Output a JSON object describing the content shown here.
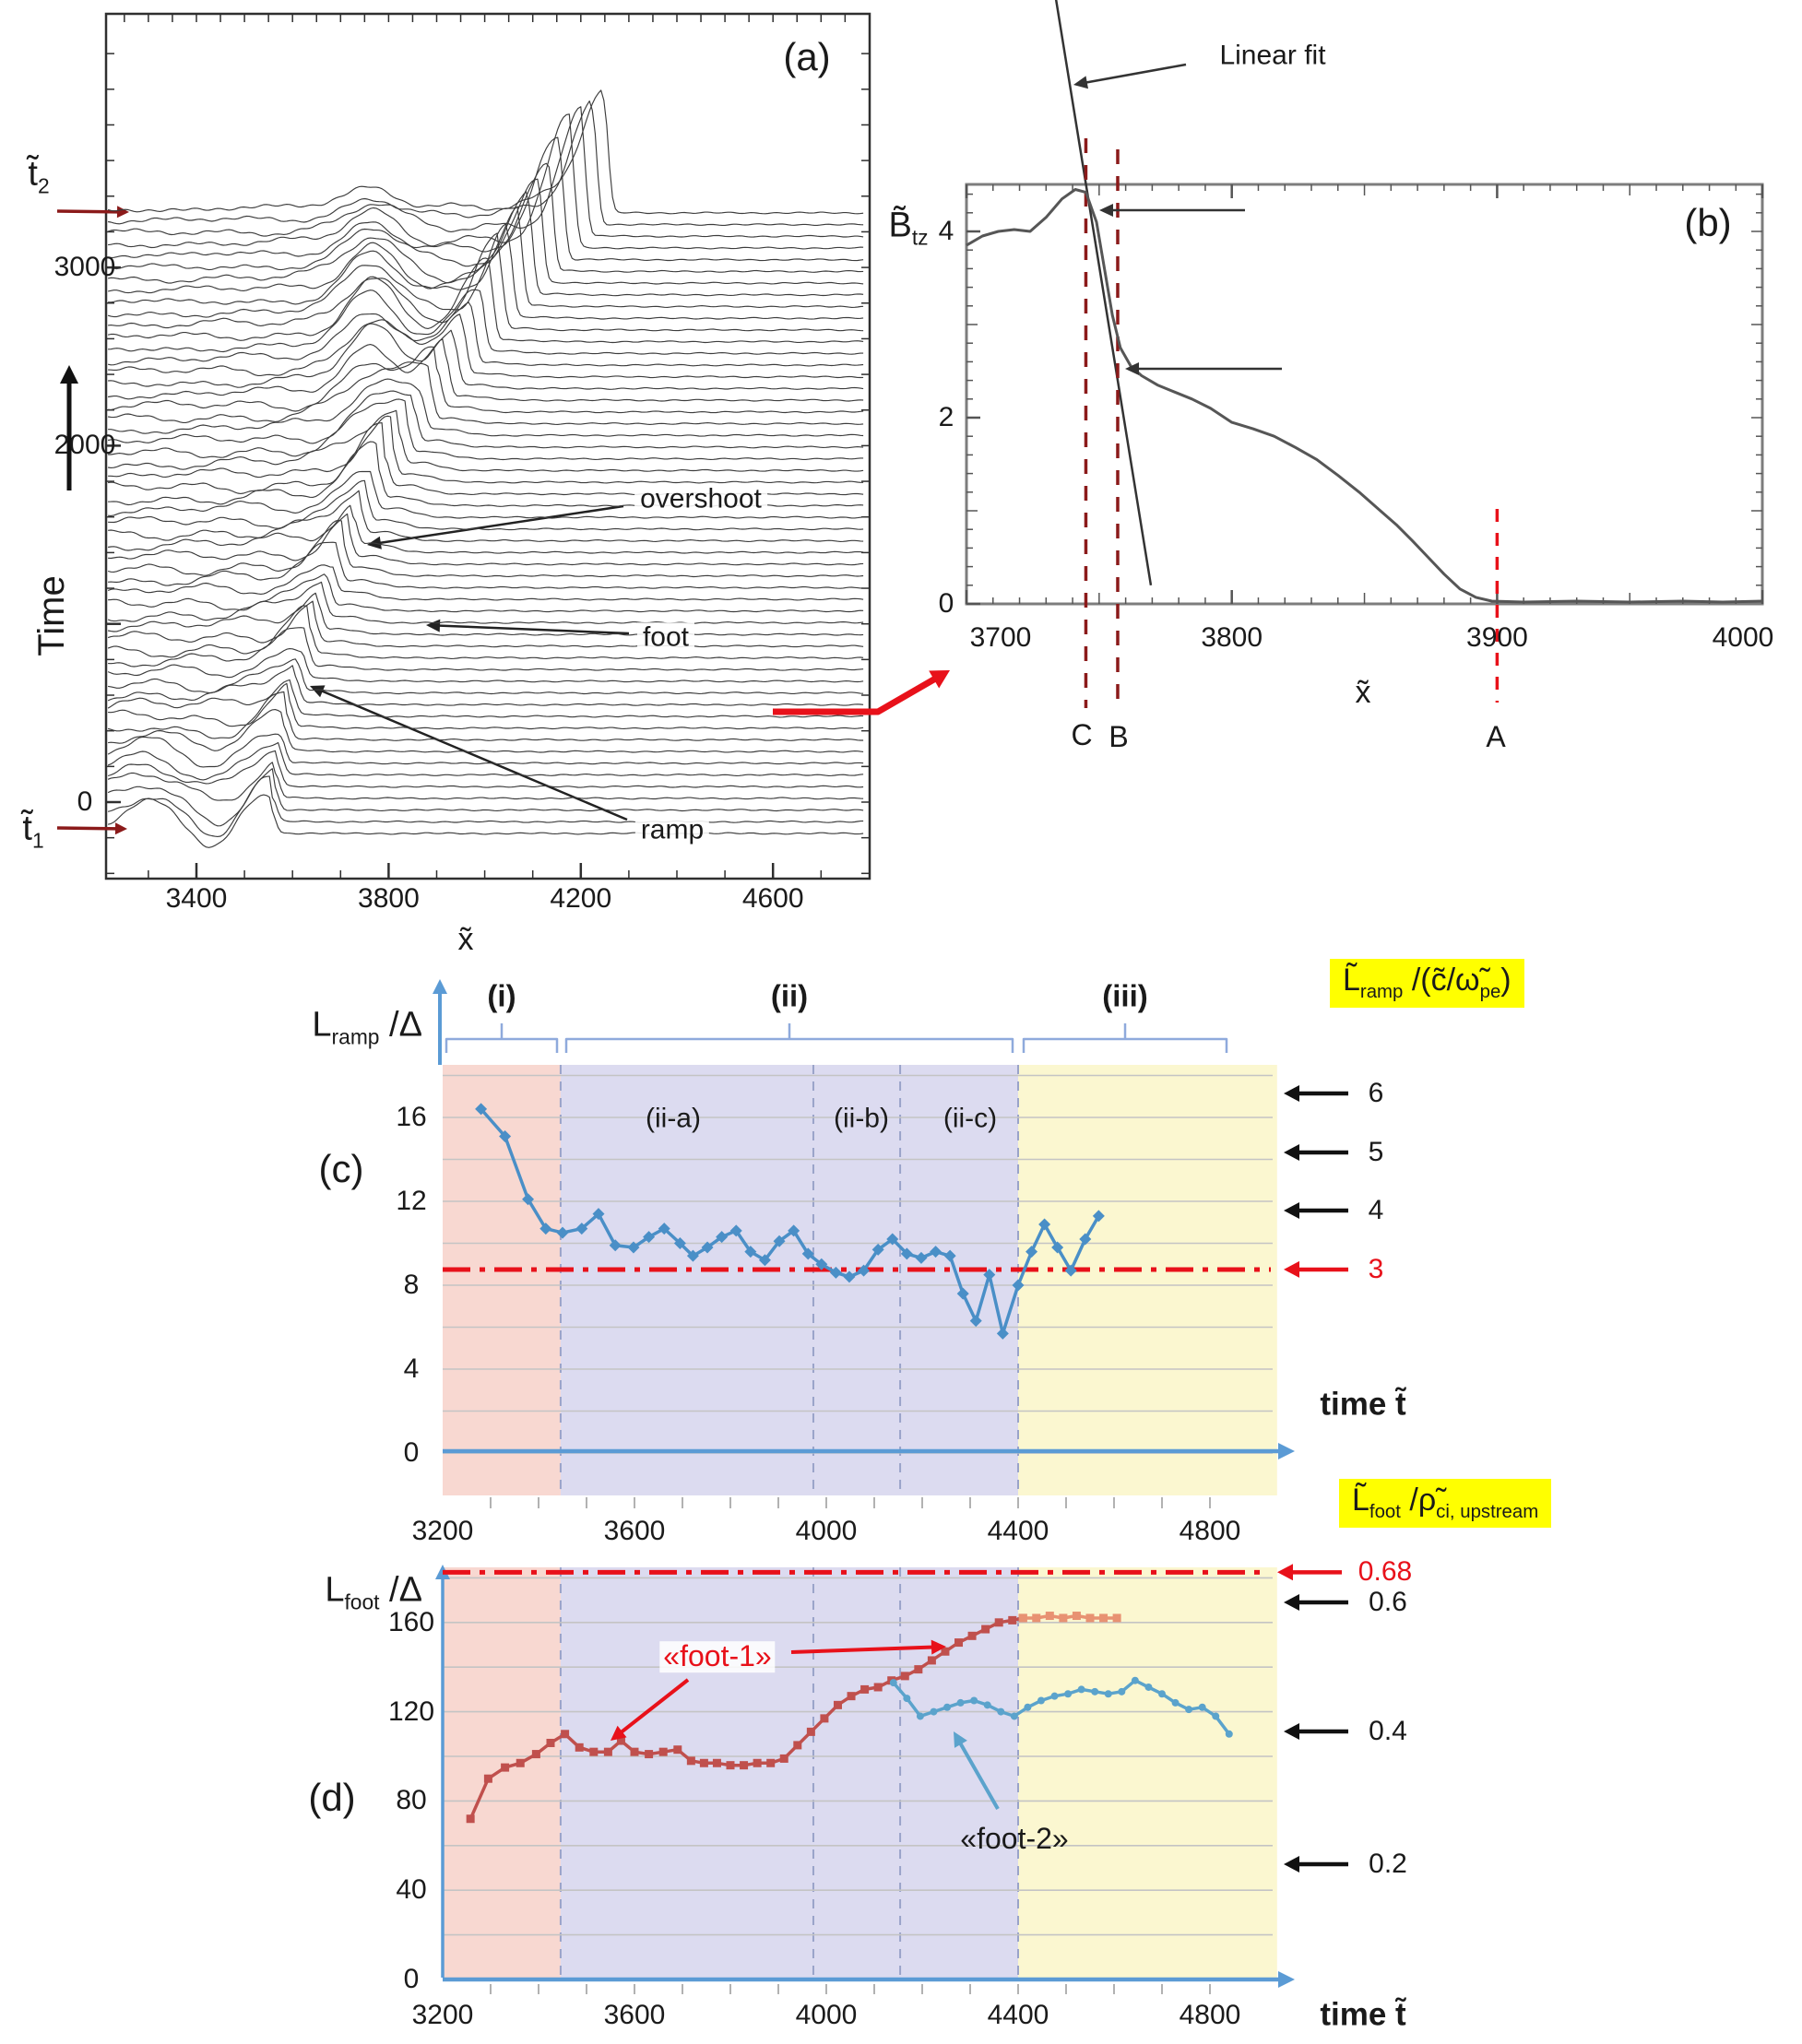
{
  "panels": {
    "a": {
      "title": "(a)",
      "x_label": "x̃",
      "y_label": "Time",
      "t1_parts": [
        {
          "t": "t̃",
          "sub": false
        },
        {
          "t": "1",
          "sub": true
        }
      ],
      "t2_parts": [
        {
          "t": "t̃",
          "sub": false
        },
        {
          "t": "2",
          "sub": true
        }
      ],
      "annotations": {
        "overshoot": "overshoot",
        "foot": "foot",
        "ramp": "ramp"
      }
    },
    "b": {
      "title": "(b)",
      "y_label_parts": [
        {
          "t": "B̃",
          "sub": false
        },
        {
          "t": "tz",
          "sub": true
        }
      ],
      "x_label": "x̃",
      "fit_label": "Linear fit",
      "cut_c": "C",
      "cut_b": "B",
      "cut_a": "A"
    },
    "c": {
      "title": "(c)",
      "y_label_parts": [
        {
          "t": "L",
          "sub": false
        },
        {
          "t": "ramp",
          "sub": true
        },
        {
          "t": " /Δ",
          "sub": false
        }
      ],
      "right_label_parts": [
        {
          "t": "L̃",
          "sub": false
        },
        {
          "t": "ramp",
          "sub": true
        },
        {
          "t": " /(c̃/ω̃",
          "sub": false
        },
        {
          "t": "pe",
          "sub": true
        },
        {
          "t": ")",
          "sub": false
        }
      ],
      "region_i": "(i)",
      "region_ii": "(ii)",
      "region_iii": "(iii)",
      "sub_a": "(ii-a)",
      "sub_b": "(ii-b)",
      "sub_c": "(ii-c)",
      "time_label": "time t̃"
    },
    "d": {
      "title": "(d)",
      "y_label_parts": [
        {
          "t": "L",
          "sub": false
        },
        {
          "t": "foot",
          "sub": true
        },
        {
          "t": " /Δ",
          "sub": false
        }
      ],
      "right_label_parts": [
        {
          "t": "L̃",
          "sub": false
        },
        {
          "t": "foot",
          "sub": true
        },
        {
          "t": " /ρ̃",
          "sub": false
        },
        {
          "t": "ci, upstream",
          "sub": true
        }
      ],
      "foot1_label": "«foot-1»",
      "foot2_label": "«foot-2»",
      "time_label": "time t̃"
    }
  },
  "chart_data": [
    {
      "id": "a",
      "type": "line",
      "subtype": "waterfall-stack",
      "title": "(a)",
      "xlabel": "x̃",
      "ylabel": "Time",
      "x_ticks": [
        3400,
        3800,
        4200,
        4600
      ],
      "y_ticks": [
        0,
        2000,
        3000
      ],
      "xlim": [
        3212,
        4795
      ],
      "ylim_time": [
        -430,
        4400
      ],
      "n_traces": 54,
      "annotations": [
        "overshoot",
        "foot",
        "ramp"
      ],
      "synthesis": {
        "x_start": 3216,
        "x_end": 4788,
        "step": 6,
        "front": {
          "s0": 3555,
          "v1": 2.2,
          "v2": 0.205,
          "amp_base": 24,
          "amp_mid": 10,
          "mid_i": 30,
          "mid_w": 25,
          "amp_top": 95,
          "top_i": 52,
          "top_w": 11,
          "w_back": 65,
          "w_fwd": 13
        },
        "hump": {
          "x": 3765,
          "sx": 75,
          "amp": 54,
          "i0": 41,
          "si": 12
        },
        "foot": {
          "amp": 10,
          "i0": 26,
          "si": 13,
          "off": 45,
          "w": 55
        },
        "level": 13,
        "level_decay": 800,
        "osc1": {
          "amp": 8,
          "decay": 500,
          "k": 30,
          "ph": 0.9
        },
        "osc2": {
          "amp": 5,
          "decay": 700,
          "k": 95,
          "ph": 1.8
        },
        "left_hump": {
          "x": 3290,
          "sx": 70,
          "amp": 22,
          "fade_i": 13
        },
        "left_dip": {
          "x": 3440,
          "sx": 60,
          "amp": 26,
          "fade_i": 10
        }
      }
    },
    {
      "id": "b",
      "type": "line",
      "title": "(b)",
      "xlabel": "x̃",
      "ylabel": "B_tz",
      "x_ticks": [
        3700,
        3800,
        3900,
        4000
      ],
      "y_ticks": [
        0,
        2,
        4
      ],
      "xlim": [
        3700,
        4000
      ],
      "ylim": [
        0,
        4.46
      ],
      "series": [
        [
          3700,
          3.85
        ],
        [
          3706,
          3.95
        ],
        [
          3712,
          4.0
        ],
        [
          3718,
          4.02
        ],
        [
          3724,
          4.0
        ],
        [
          3730,
          4.15
        ],
        [
          3736,
          4.35
        ],
        [
          3741,
          4.45
        ],
        [
          3745,
          4.42
        ],
        [
          3749,
          4.1
        ],
        [
          3752,
          3.6
        ],
        [
          3755,
          3.1
        ],
        [
          3758,
          2.75
        ],
        [
          3762,
          2.55
        ],
        [
          3766,
          2.45
        ],
        [
          3772,
          2.35
        ],
        [
          3778,
          2.28
        ],
        [
          3785,
          2.2
        ],
        [
          3792,
          2.1
        ],
        [
          3800,
          1.95
        ],
        [
          3808,
          1.88
        ],
        [
          3816,
          1.8
        ],
        [
          3824,
          1.68
        ],
        [
          3832,
          1.55
        ],
        [
          3840,
          1.38
        ],
        [
          3848,
          1.2
        ],
        [
          3856,
          1.0
        ],
        [
          3862,
          0.85
        ],
        [
          3868,
          0.68
        ],
        [
          3874,
          0.5
        ],
        [
          3880,
          0.32
        ],
        [
          3886,
          0.16
        ],
        [
          3892,
          0.07
        ],
        [
          3898,
          0.03
        ],
        [
          3910,
          0.02
        ],
        [
          3930,
          0.03
        ],
        [
          3950,
          0.02
        ],
        [
          3970,
          0.03
        ],
        [
          3985,
          0.02
        ],
        [
          4000,
          0.03
        ]
      ],
      "fit_line": {
        "x1": 3733.7,
        "y1": 6.5,
        "x2": 3769.5,
        "y2": 0.2
      },
      "cuts": {
        "C": 3745,
        "B": 3757,
        "A": 3900
      }
    },
    {
      "id": "c",
      "type": "line",
      "title": "(c)",
      "ylabel": "L_ramp/Δ",
      "right_ylabel": "L̃_ramp/(c̃/ω̃_pe)",
      "x_ticks": [
        3200,
        3600,
        4000,
        4400,
        4800
      ],
      "y_ticks": [
        0,
        4,
        8,
        12,
        16
      ],
      "xlim": [
        3200,
        4940
      ],
      "ylim": [
        -2,
        18.5
      ],
      "grid_step": 2,
      "hline_red": 8.75,
      "region_bounds": [
        3200,
        3446,
        4400,
        4940
      ],
      "sub_bounds": [
        3973,
        4154
      ],
      "right_arrow_ticks": [
        "6",
        "5",
        "4"
      ],
      "right_arrow_red": "3",
      "series": [
        [
          3280,
          16.4
        ],
        [
          3330,
          15.1
        ],
        [
          3378,
          12.1
        ],
        [
          3415,
          10.7
        ],
        [
          3450,
          10.5
        ],
        [
          3490,
          10.7
        ],
        [
          3525,
          11.4
        ],
        [
          3560,
          9.9
        ],
        [
          3598,
          9.8
        ],
        [
          3630,
          10.3
        ],
        [
          3662,
          10.7
        ],
        [
          3695,
          10.0
        ],
        [
          3722,
          9.4
        ],
        [
          3752,
          9.8
        ],
        [
          3782,
          10.3
        ],
        [
          3812,
          10.6
        ],
        [
          3842,
          9.6
        ],
        [
          3872,
          9.2
        ],
        [
          3902,
          10.1
        ],
        [
          3932,
          10.6
        ],
        [
          3962,
          9.5
        ],
        [
          3990,
          9.0
        ],
        [
          4020,
          8.6
        ],
        [
          4048,
          8.4
        ],
        [
          4078,
          8.7
        ],
        [
          4108,
          9.7
        ],
        [
          4138,
          10.2
        ],
        [
          4168,
          9.5
        ],
        [
          4198,
          9.3
        ],
        [
          4228,
          9.6
        ],
        [
          4258,
          9.4
        ],
        [
          4285,
          7.6
        ],
        [
          4312,
          6.3
        ],
        [
          4340,
          8.5
        ],
        [
          4368,
          5.7
        ],
        [
          4400,
          8.0
        ],
        [
          4428,
          9.6
        ],
        [
          4455,
          10.9
        ],
        [
          4482,
          9.8
        ],
        [
          4510,
          8.7
        ],
        [
          4540,
          10.2
        ],
        [
          4568,
          11.3
        ]
      ]
    },
    {
      "id": "d",
      "type": "line",
      "title": "(d)",
      "ylabel": "L_foot/Δ",
      "right_ylabel": "L̃_foot/ρ̃_ci,upstream",
      "x_ticks": [
        3200,
        3600,
        4000,
        4400,
        4800
      ],
      "y_ticks": [
        0,
        40,
        80,
        120,
        160
      ],
      "xlim": [
        3200,
        4940
      ],
      "ylim": [
        0,
        185
      ],
      "grid_step": 20,
      "hline_red": 182.5,
      "region_bounds": [
        3200,
        3446,
        4400,
        4940
      ],
      "sub_bounds": [
        3973,
        4154
      ],
      "right_arrow_ticks": [
        "0.6",
        "0.4",
        "0.2"
      ],
      "right_arrow_red": "0.68",
      "series_foot1": [
        [
          3258,
          72
        ],
        [
          3295,
          90
        ],
        [
          3330,
          95
        ],
        [
          3362,
          97
        ],
        [
          3395,
          101
        ],
        [
          3425,
          106
        ],
        [
          3455,
          110
        ],
        [
          3485,
          104
        ],
        [
          3515,
          102
        ],
        [
          3545,
          102
        ],
        [
          3572,
          107
        ],
        [
          3600,
          102
        ],
        [
          3630,
          101
        ],
        [
          3660,
          102
        ],
        [
          3690,
          103
        ],
        [
          3718,
          98
        ],
        [
          3745,
          97
        ],
        [
          3772,
          97
        ],
        [
          3800,
          96
        ],
        [
          3828,
          96
        ],
        [
          3856,
          97
        ],
        [
          3884,
          97
        ],
        [
          3912,
          99
        ],
        [
          3940,
          105
        ],
        [
          3968,
          111
        ],
        [
          3996,
          117
        ],
        [
          4024,
          123
        ],
        [
          4052,
          127
        ],
        [
          4080,
          130
        ],
        [
          4108,
          131
        ],
        [
          4136,
          134
        ],
        [
          4164,
          136
        ],
        [
          4192,
          139
        ],
        [
          4220,
          143
        ],
        [
          4248,
          147
        ],
        [
          4276,
          151
        ],
        [
          4304,
          154
        ],
        [
          4332,
          157
        ],
        [
          4360,
          160
        ],
        [
          4388,
          161
        ],
        [
          4410,
          162
        ]
      ],
      "series_foot1_late": [
        [
          4410,
          162
        ],
        [
          4438,
          162
        ],
        [
          4466,
          163
        ],
        [
          4494,
          162
        ],
        [
          4522,
          163
        ],
        [
          4550,
          162
        ],
        [
          4578,
          162
        ],
        [
          4606,
          162
        ]
      ],
      "series_foot2": [
        [
          4140,
          133
        ],
        [
          4168,
          126
        ],
        [
          4196,
          118
        ],
        [
          4224,
          120
        ],
        [
          4252,
          122
        ],
        [
          4280,
          124
        ],
        [
          4308,
          125
        ],
        [
          4336,
          123
        ],
        [
          4364,
          120
        ],
        [
          4392,
          118
        ],
        [
          4420,
          122
        ],
        [
          4448,
          125
        ],
        [
          4476,
          127
        ],
        [
          4504,
          128
        ],
        [
          4532,
          130
        ],
        [
          4560,
          129
        ],
        [
          4588,
          128
        ],
        [
          4616,
          129
        ],
        [
          4644,
          134
        ],
        [
          4672,
          131
        ],
        [
          4700,
          128
        ],
        [
          4728,
          124
        ],
        [
          4756,
          121
        ],
        [
          4784,
          122
        ],
        [
          4812,
          118
        ],
        [
          4840,
          110
        ]
      ]
    }
  ],
  "colors": {
    "trace": "#3c3c3c",
    "box_a": "#2f2f2f",
    "box_b": "#7d7d7d",
    "curve_b": "#565656",
    "darkred": "#8b1a1a",
    "red": "#e8111a",
    "pink_band": "#f8d8d1",
    "purple_band": "#dcdbf0",
    "yellow_band": "#fbf7d0",
    "label_yellow": "#ffff00",
    "blue_series": "#4a8fc7",
    "foot1": "#c0504d",
    "foot1_late": "#e89272",
    "foot2": "#5ba3cc",
    "axis_blue": "#5b9bd5",
    "brace_blue": "#8faadc",
    "gridline": "#c4c4c4",
    "dashed_boundary": "#9aa3c9"
  }
}
